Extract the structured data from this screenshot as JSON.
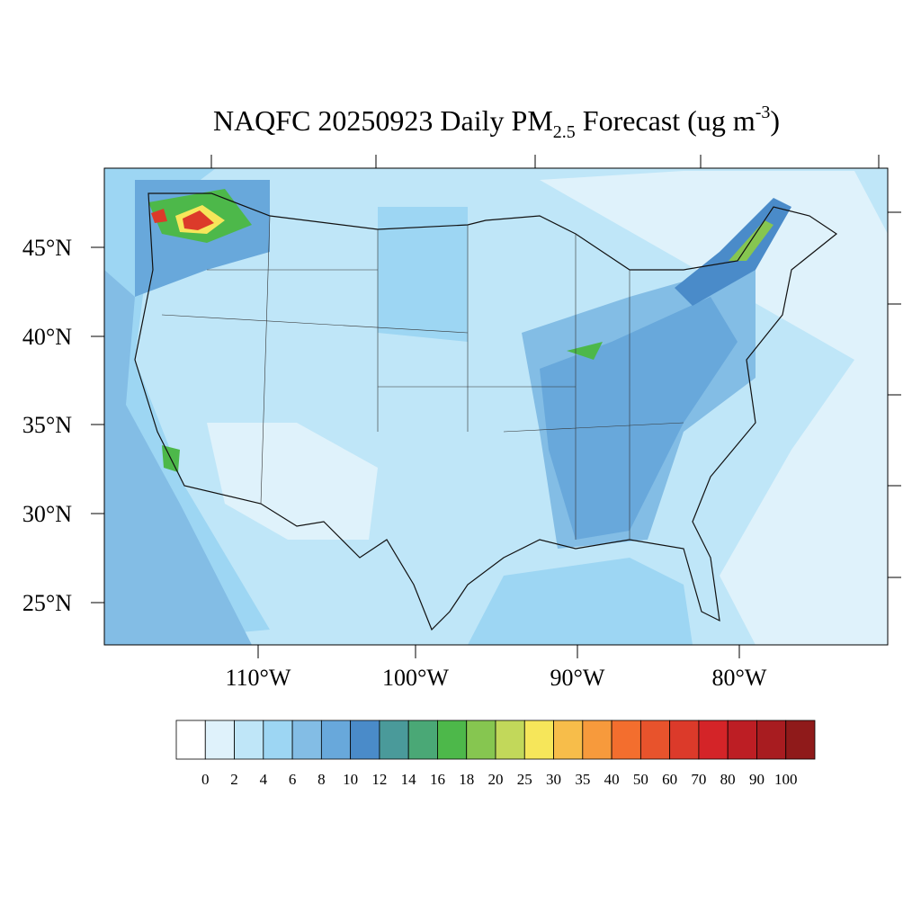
{
  "title": {
    "main": "NAQFC 20250923 Daily PM",
    "subscript": "2.5",
    "rest": " Forecast (ug m",
    "superscript": "-3",
    "close": ")"
  },
  "lat_labels": [
    "45°N",
    "40°N",
    "35°N",
    "30°N",
    "25°N"
  ],
  "lon_labels": [
    "110°W",
    "100°W",
    "90°W",
    "80°W"
  ],
  "colorbar": {
    "levels": [
      0,
      2,
      4,
      6,
      8,
      10,
      12,
      14,
      16,
      18,
      20,
      25,
      30,
      35,
      40,
      50,
      60,
      70,
      80,
      90,
      100
    ],
    "colors": [
      "#ffffff",
      "#dff2fb",
      "#bfe6f8",
      "#9dd6f3",
      "#83bde5",
      "#68a8db",
      "#4a8bc9",
      "#4a9a9a",
      "#4aa876",
      "#4db84a",
      "#86c650",
      "#c2d85a",
      "#f6e65a",
      "#f7bd4a",
      "#f79a3c",
      "#f36e2e",
      "#e8532c",
      "#dc3a2a",
      "#d42428",
      "#bd1e24",
      "#a81c20",
      "#8f1a1a"
    ]
  }
}
